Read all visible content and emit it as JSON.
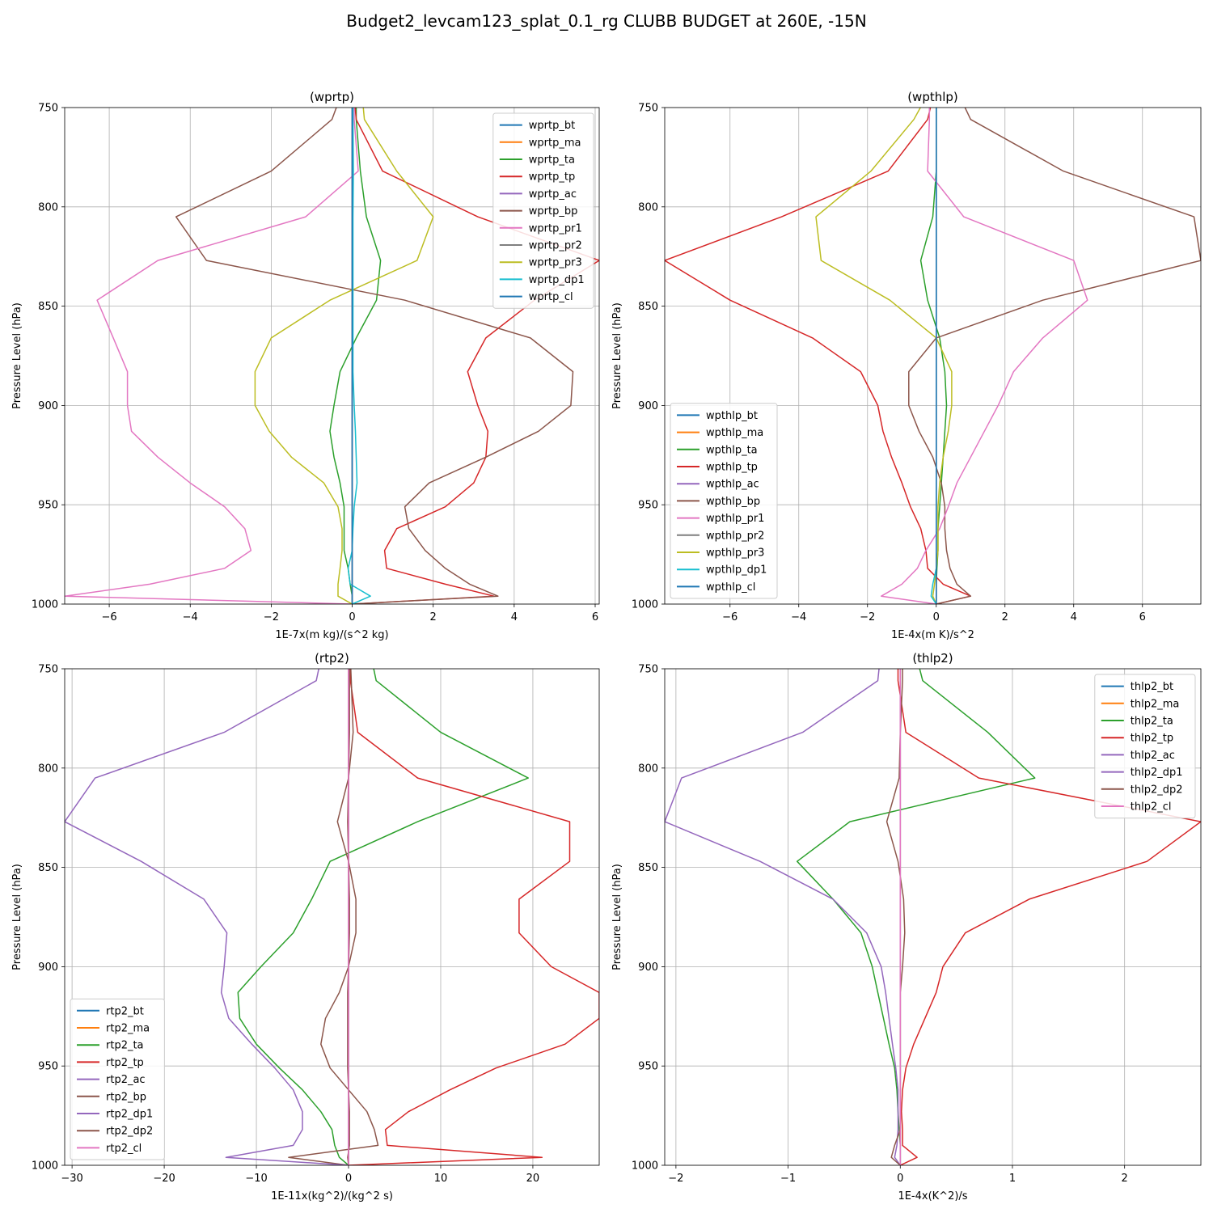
{
  "suptitle": "Budget2_levcam123_splat_0.1_rg CLUBB BUDGET at 260E, -15N",
  "colors": {
    "C0": "#1f77b4",
    "C1": "#ff7f0e",
    "C2": "#2ca02c",
    "C3": "#d62728",
    "C4": "#9467bd",
    "C5": "#8c564b",
    "C6": "#e377c2",
    "C7": "#7f7f7f",
    "C8": "#bcbd22",
    "C9": "#17becf",
    "grid": "#b0b0b0"
  },
  "chart_data": [
    {
      "type": "line",
      "title": "(wprtp)",
      "xlabel": "1E-7x(m kg)/(s^2 kg)",
      "ylabel": "Pressure Level (hPa)",
      "xlim": [
        -7.1,
        6.1
      ],
      "ylim": [
        1000,
        750
      ],
      "xticks": [
        -6,
        -4,
        -2,
        0,
        2,
        4,
        6
      ],
      "yticks": [
        750,
        800,
        850,
        900,
        950,
        1000
      ],
      "grid": true,
      "legend_position": "upper right",
      "levels": [
        745,
        756,
        782,
        805,
        827,
        847,
        866,
        883,
        900,
        913,
        926,
        939,
        951,
        962,
        973,
        982,
        990,
        996,
        1000
      ],
      "series": [
        {
          "name": "wprtp_bt",
          "color": "C0",
          "values": [
            0,
            0,
            0,
            0,
            0,
            0,
            0,
            0,
            0,
            0,
            0,
            0,
            0,
            0,
            0,
            0,
            0,
            0,
            0
          ]
        },
        {
          "name": "wprtp_ma",
          "color": "C1",
          "values": [
            0,
            0,
            0,
            0,
            0,
            0,
            0,
            0,
            0,
            0,
            0,
            0,
            0,
            0,
            0,
            0,
            0,
            0,
            0
          ]
        },
        {
          "name": "wprtp_ta",
          "color": "C2",
          "values": [
            0.1,
            0.1,
            0.2,
            0.35,
            0.7,
            0.6,
            0.1,
            -0.3,
            -0.45,
            -0.55,
            -0.45,
            -0.3,
            -0.2,
            -0.2,
            -0.2,
            -0.1,
            -0.05,
            0,
            0
          ]
        },
        {
          "name": "wprtp_tp",
          "color": "C3",
          "values": [
            0.05,
            0.1,
            0.75,
            3.1,
            6.1,
            4.5,
            3.3,
            2.85,
            3.1,
            3.35,
            3.3,
            3.0,
            2.3,
            1.1,
            0.8,
            0.85,
            2.3,
            3.5,
            0
          ]
        },
        {
          "name": "wprtp_ac",
          "color": "C4",
          "values": [
            0,
            0,
            0,
            0,
            0,
            0,
            0,
            0,
            0,
            0,
            0,
            0,
            0,
            0,
            0,
            0,
            0,
            0,
            0
          ]
        },
        {
          "name": "wprtp_bp",
          "color": "C5",
          "values": [
            -0.3,
            -0.5,
            -2.0,
            -4.35,
            -3.6,
            1.3,
            4.4,
            5.45,
            5.4,
            4.6,
            3.3,
            1.9,
            1.3,
            1.4,
            1.8,
            2.3,
            2.9,
            3.6,
            0
          ]
        },
        {
          "name": "wprtp_pr1",
          "color": "C6",
          "values": [
            0.05,
            0.05,
            0.15,
            -1.15,
            -4.8,
            -6.3,
            -5.9,
            -5.55,
            -5.55,
            -5.45,
            -4.8,
            -4.0,
            -3.15,
            -2.65,
            -2.5,
            -3.15,
            -5.0,
            -7.1,
            0
          ]
        },
        {
          "name": "wprtp_pr2",
          "color": "C7",
          "values": [
            0,
            0,
            0,
            0,
            0,
            0,
            0,
            0,
            0,
            0,
            0,
            0,
            0,
            0,
            0,
            0,
            0,
            0,
            0
          ]
        },
        {
          "name": "wprtp_pr3",
          "color": "C8",
          "values": [
            0.25,
            0.3,
            1.1,
            2.0,
            1.6,
            -0.55,
            -2.0,
            -2.4,
            -2.4,
            -2.05,
            -1.5,
            -0.7,
            -0.35,
            -0.25,
            -0.25,
            -0.3,
            -0.35,
            -0.35,
            0
          ]
        },
        {
          "name": "wprtp_dp1",
          "color": "C9",
          "values": [
            0.02,
            0.02,
            0.03,
            0.02,
            0.02,
            0.02,
            0.02,
            0.02,
            0.05,
            0.08,
            0.1,
            0.12,
            0.05,
            0.02,
            0.0,
            -0.1,
            -0.05,
            0.45,
            0
          ]
        },
        {
          "name": "wprtp_cl",
          "color": "C0",
          "values": [
            0,
            0,
            0,
            0,
            0,
            0,
            0,
            0,
            0,
            0,
            0,
            0,
            0,
            0,
            0,
            0,
            0,
            0,
            0
          ]
        }
      ]
    },
    {
      "type": "line",
      "title": "(wpthlp)",
      "xlabel": "1E-4x(m K)/s^2",
      "ylabel": "Pressure Level (hPa)",
      "xlim": [
        -7.9,
        7.7
      ],
      "ylim": [
        1000,
        750
      ],
      "xticks": [
        -6,
        -4,
        -2,
        0,
        2,
        4,
        6
      ],
      "yticks": [
        750,
        800,
        850,
        900,
        950,
        1000
      ],
      "grid": true,
      "legend_position": "lower left",
      "levels": [
        745,
        756,
        782,
        805,
        827,
        847,
        866,
        883,
        900,
        913,
        926,
        939,
        951,
        962,
        973,
        982,
        990,
        996,
        1000
      ],
      "series": [
        {
          "name": "wpthlp_bt",
          "color": "C0",
          "values": [
            0,
            0,
            0,
            0,
            0,
            0,
            0,
            0,
            0,
            0,
            0,
            0,
            0,
            0,
            0,
            0,
            0,
            0,
            0
          ]
        },
        {
          "name": "wpthlp_ma",
          "color": "C1",
          "values": [
            0,
            0,
            0,
            0,
            0,
            0,
            0,
            0,
            0,
            0,
            0,
            0,
            0,
            0,
            0,
            0,
            0,
            0,
            0
          ]
        },
        {
          "name": "wpthlp_ta",
          "color": "C2",
          "values": [
            0.0,
            0.0,
            0.0,
            -0.1,
            -0.45,
            -0.25,
            0.1,
            0.25,
            0.3,
            0.25,
            0.2,
            0.15,
            0.1,
            0.05,
            0.05,
            0.02,
            0.0,
            0.0,
            0
          ]
        },
        {
          "name": "wpthlp_tp",
          "color": "C3",
          "values": [
            -0.1,
            -0.25,
            -1.4,
            -4.5,
            -7.9,
            -6.0,
            -3.6,
            -2.2,
            -1.7,
            -1.55,
            -1.3,
            -1.0,
            -0.75,
            -0.45,
            -0.3,
            -0.25,
            0.2,
            1.0,
            0
          ]
        },
        {
          "name": "wpthlp_ac",
          "color": "C4",
          "values": [
            0,
            0,
            0,
            0,
            0,
            0,
            0,
            0,
            0,
            0,
            0,
            0,
            0,
            0,
            0,
            0,
            0,
            0,
            0
          ]
        },
        {
          "name": "wpthlp_bp",
          "color": "C5",
          "values": [
            0.7,
            1.0,
            3.7,
            7.5,
            7.7,
            3.1,
            0.0,
            -0.8,
            -0.8,
            -0.5,
            -0.1,
            0.15,
            0.25,
            0.25,
            0.3,
            0.4,
            0.6,
            1.0,
            0
          ]
        },
        {
          "name": "wpthlp_pr1",
          "color": "C6",
          "values": [
            -0.2,
            -0.2,
            -0.25,
            0.8,
            4.0,
            4.4,
            3.1,
            2.25,
            1.8,
            1.4,
            1.0,
            0.6,
            0.35,
            0.1,
            -0.3,
            -0.55,
            -1.0,
            -1.6,
            0
          ]
        },
        {
          "name": "wpthlp_pr2",
          "color": "C7",
          "values": [
            0,
            0,
            0,
            0,
            0,
            0,
            0,
            0,
            0,
            0,
            0,
            0,
            0,
            0,
            0,
            0,
            0,
            0,
            0
          ]
        },
        {
          "name": "wpthlp_pr3",
          "color": "C8",
          "values": [
            -0.3,
            -0.65,
            -1.9,
            -3.5,
            -3.35,
            -1.35,
            0.0,
            0.45,
            0.45,
            0.35,
            0.2,
            0.1,
            0.05,
            0.05,
            0.05,
            0.0,
            -0.05,
            -0.1,
            0
          ]
        },
        {
          "name": "wpthlp_dp1",
          "color": "C9",
          "values": [
            0,
            0,
            0,
            0,
            0,
            0,
            0,
            0,
            0,
            0,
            0,
            0,
            0,
            0,
            0,
            0,
            -0.1,
            -0.15,
            0
          ]
        },
        {
          "name": "wpthlp_cl",
          "color": "C0",
          "values": [
            0,
            0,
            0,
            0,
            0,
            0,
            0,
            0,
            0,
            0,
            0,
            0,
            0,
            0,
            0,
            0,
            0,
            0,
            0
          ]
        }
      ]
    },
    {
      "type": "line",
      "title": "(rtp2)",
      "xlabel": "1E-11x(kg^2)/(kg^2 s)",
      "ylabel": "Pressure Level (hPa)",
      "xlim": [
        -30.8,
        27.2
      ],
      "ylim": [
        1000,
        750
      ],
      "xticks": [
        -30,
        -20,
        -10,
        0,
        10,
        20
      ],
      "yticks": [
        750,
        800,
        850,
        900,
        950,
        1000
      ],
      "grid": true,
      "legend_position": "lower left",
      "levels": [
        745,
        756,
        782,
        805,
        827,
        847,
        866,
        883,
        900,
        913,
        926,
        939,
        951,
        962,
        973,
        982,
        990,
        996,
        1000
      ],
      "series": [
        {
          "name": "rtp2_bt",
          "color": "C0",
          "values": [
            0,
            0,
            0,
            0,
            0,
            0,
            0,
            0,
            0,
            0,
            0,
            0,
            0,
            0,
            0,
            0,
            0,
            0,
            0
          ]
        },
        {
          "name": "rtp2_ma",
          "color": "C1",
          "values": [
            0,
            0,
            0,
            0,
            0,
            0,
            0,
            0,
            0,
            0,
            0,
            0,
            0,
            0,
            0,
            0,
            0,
            0,
            0
          ]
        },
        {
          "name": "rtp2_ta",
          "color": "C2",
          "values": [
            2.5,
            3.0,
            10.0,
            19.5,
            7.5,
            -2.0,
            -4.0,
            -6.0,
            -9.5,
            -12.0,
            -11.8,
            -10.0,
            -7.5,
            -5.0,
            -3.0,
            -1.8,
            -1.5,
            -1.0,
            0
          ]
        },
        {
          "name": "rtp2_tp",
          "color": "C3",
          "values": [
            0.2,
            0.2,
            1.0,
            7.5,
            24.0,
            24.0,
            18.5,
            18.5,
            22.0,
            27.2,
            27.2,
            23.5,
            16.0,
            11.0,
            6.5,
            4.0,
            4.2,
            21.0,
            0
          ]
        },
        {
          "name": "rtp2_ac",
          "color": "C4",
          "values": [
            0,
            0,
            0,
            0,
            0,
            0,
            0,
            0,
            0,
            0,
            0,
            0,
            0,
            0,
            0,
            0,
            0,
            0,
            0
          ]
        },
        {
          "name": "rtp2_bp",
          "color": "C5",
          "values": [
            0.2,
            0.3,
            0.5,
            0.0,
            -1.2,
            0.0,
            0.8,
            0.8,
            0.0,
            -1.0,
            -2.5,
            -3.0,
            -2.0,
            0.0,
            2.0,
            2.8,
            3.2,
            -6.5,
            0
          ]
        },
        {
          "name": "rtp2_dp1",
          "color": "C4",
          "values": [
            -3.0,
            -3.5,
            -13.5,
            -27.5,
            -30.8,
            -22.5,
            -15.7,
            -13.2,
            -13.5,
            -13.8,
            -13.0,
            -10.5,
            -8.0,
            -6.0,
            -5.0,
            -5.0,
            -6.0,
            -13.3,
            0
          ]
        },
        {
          "name": "rtp2_dp2",
          "color": "C5",
          "values": [
            0.1,
            0.1,
            0.1,
            0.0,
            -0.1,
            0.0,
            0.1,
            0.1,
            0.0,
            -0.1,
            -0.1,
            -0.1,
            -0.1,
            0.0,
            0.1,
            0.1,
            0.1,
            -0.1,
            0
          ]
        },
        {
          "name": "rtp2_cl",
          "color": "C6",
          "values": [
            0,
            0,
            0,
            0,
            0,
            0,
            0,
            0,
            0,
            0,
            0,
            0,
            0,
            0,
            0,
            0,
            0,
            0,
            0
          ]
        }
      ]
    },
    {
      "type": "line",
      "title": "(thlp2)",
      "xlabel": "1E-4x(K^2)/s",
      "ylabel": "Pressure Level (hPa)",
      "xlim": [
        -2.1,
        2.68
      ],
      "ylim": [
        1000,
        750
      ],
      "xticks": [
        -2,
        -1,
        0,
        1,
        2
      ],
      "yticks": [
        750,
        800,
        850,
        900,
        950,
        1000
      ],
      "grid": true,
      "legend_position": "upper right",
      "levels": [
        745,
        756,
        782,
        805,
        827,
        847,
        866,
        883,
        900,
        913,
        926,
        939,
        951,
        962,
        973,
        982,
        990,
        996,
        1000
      ],
      "series": [
        {
          "name": "thlp2_bt",
          "color": "C0",
          "values": [
            0,
            0,
            0,
            0,
            0,
            0,
            0,
            0,
            0,
            0,
            0,
            0,
            0,
            0,
            0,
            0,
            0,
            0,
            0
          ]
        },
        {
          "name": "thlp2_ma",
          "color": "C1",
          "values": [
            0,
            0,
            0,
            0,
            0,
            0,
            0,
            0,
            0,
            0,
            0,
            0,
            0,
            0,
            0,
            0,
            0,
            0,
            0
          ]
        },
        {
          "name": "thlp2_ta",
          "color": "C2",
          "values": [
            0.15,
            0.2,
            0.78,
            1.2,
            -0.45,
            -0.92,
            -0.6,
            -0.35,
            -0.25,
            -0.2,
            -0.15,
            -0.1,
            -0.05,
            -0.03,
            -0.02,
            -0.01,
            0.0,
            0.0,
            0
          ]
        },
        {
          "name": "thlp2_tp",
          "color": "C3",
          "values": [
            -0.02,
            -0.02,
            0.05,
            0.7,
            2.68,
            2.2,
            1.15,
            0.58,
            0.38,
            0.32,
            0.22,
            0.12,
            0.05,
            0.02,
            0.01,
            0.02,
            0.02,
            0.15,
            0
          ]
        },
        {
          "name": "thlp2_ac",
          "color": "C4",
          "values": [
            0,
            0,
            0,
            0,
            0,
            0,
            0,
            0,
            0,
            0,
            0,
            0,
            0,
            0,
            0,
            0,
            0,
            0,
            0
          ]
        },
        {
          "name": "thlp2_dp1",
          "color": "C4",
          "values": [
            -0.18,
            -0.2,
            -0.87,
            -1.95,
            -2.1,
            -1.25,
            -0.6,
            -0.3,
            -0.17,
            -0.13,
            -0.1,
            -0.07,
            -0.04,
            -0.02,
            -0.02,
            -0.02,
            -0.03,
            -0.05,
            0
          ]
        },
        {
          "name": "thlp2_dp2",
          "color": "C5",
          "values": [
            0.02,
            0.02,
            0.0,
            -0.01,
            -0.12,
            -0.02,
            0.03,
            0.04,
            0.02,
            0.0,
            0.0,
            0.0,
            0.0,
            0.0,
            0.0,
            0.0,
            -0.05,
            -0.08,
            0
          ]
        },
        {
          "name": "thlp2_cl",
          "color": "C6",
          "values": [
            0,
            0,
            0,
            0,
            0,
            0,
            0,
            0,
            0,
            0,
            0,
            0,
            0,
            0,
            0,
            0,
            0,
            0,
            0
          ]
        }
      ]
    }
  ]
}
